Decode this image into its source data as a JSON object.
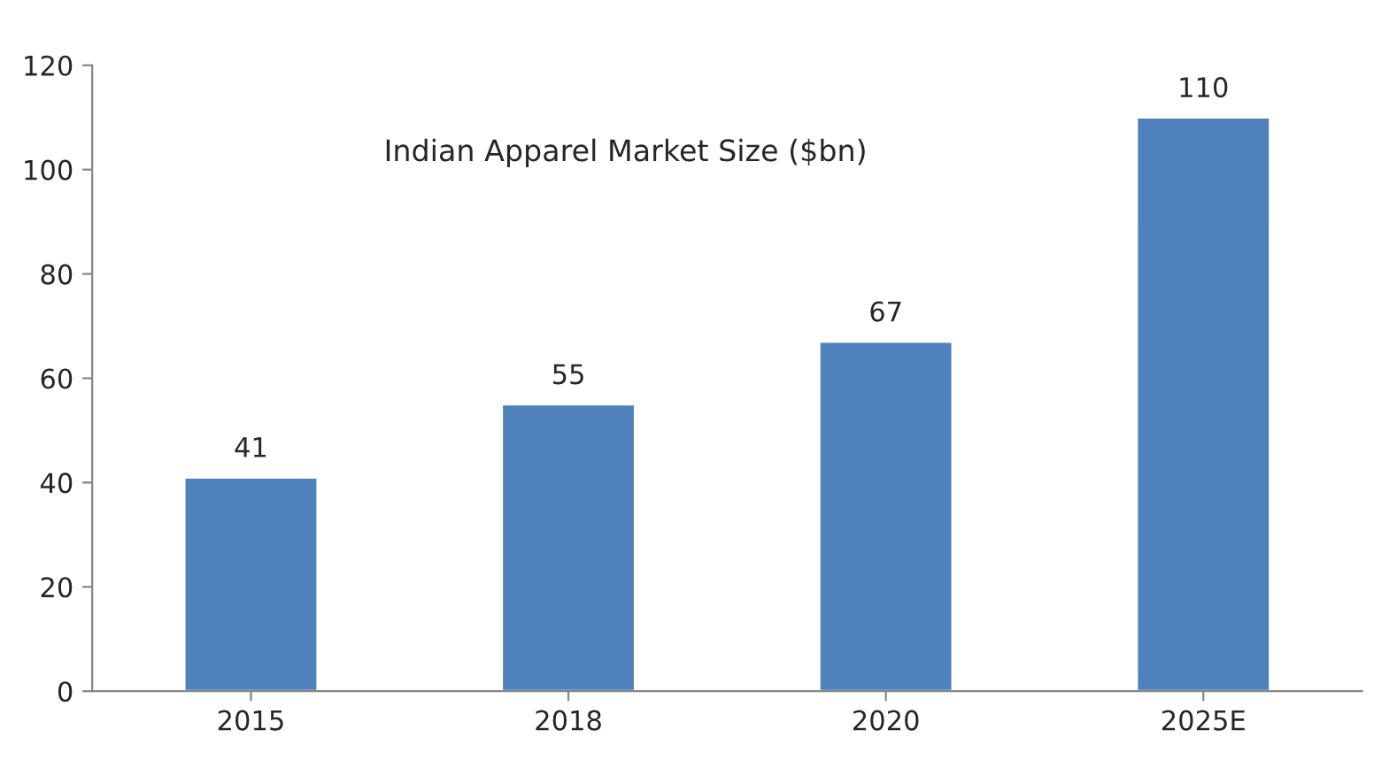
{
  "chart_data": {
    "type": "bar",
    "title": "Indian Apparel Market Size ($bn)",
    "categories": [
      "2015",
      "2018",
      "2020",
      "2025E"
    ],
    "values": [
      41,
      55,
      67,
      110
    ],
    "color": "#4f81bd",
    "ylim": [
      0,
      120
    ],
    "yticks": [
      0,
      20,
      40,
      60,
      80,
      100,
      120
    ],
    "grid": false,
    "data_labels": true
  }
}
